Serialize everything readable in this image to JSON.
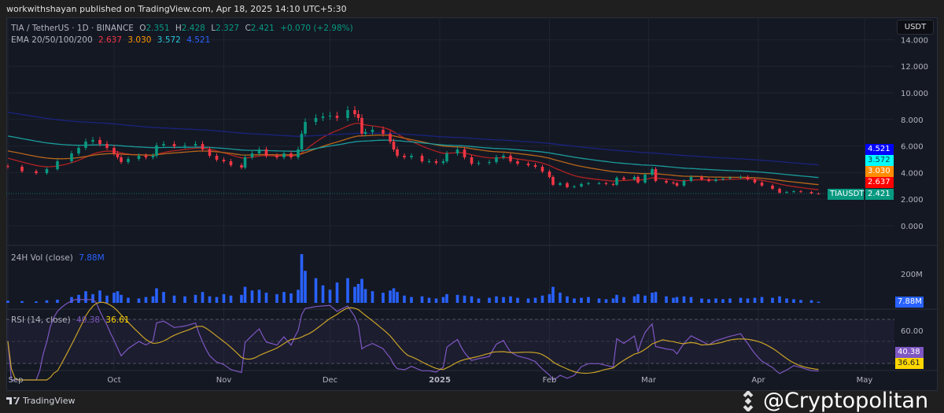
{
  "publisher_line": "workwithshayan published on TradingView.com, Apr 18, 2025 14:10 UTC+5:30",
  "header": {
    "symbol": "TIA / TetherUS · 1D · BINANCE",
    "open_label": "O",
    "open": "2.351",
    "high_label": "H",
    "high": "2.428",
    "low_label": "L",
    "low": "2.327",
    "close_label": "C",
    "close": "2.421",
    "change": "+0.070 (+2.98%)",
    "ema_label": "EMA 20/50/100/200",
    "ema20": "2.637",
    "ema50": "3.030",
    "ema100": "3.572",
    "ema200": "4.521"
  },
  "currency_button": "USDT",
  "volume_legend": {
    "label": "24H Vol (close)",
    "value": "7.88M"
  },
  "rsi_legend": {
    "label": "RSI (14, close)",
    "rsi": "40.38",
    "ma": "36.61"
  },
  "last_price_tag": {
    "symbol": "TIAUSDT",
    "value": "2.421"
  },
  "footer": {
    "brand": "TradingView",
    "watermark": "@Cryptopolitan"
  },
  "colors": {
    "up": "#089981",
    "down": "#f23645",
    "ema20": "#ff0000",
    "ema50": "#ff8c00",
    "ema100": "#00ffff",
    "ema200": "#0000ff",
    "volume": "#2962ff",
    "rsi": "#7e57c2",
    "rsi_ma": "#ffd600"
  },
  "chart_data": [
    {
      "type": "candlestick",
      "title": "TIA / TetherUS · 1D · BINANCE",
      "ylim": [
        0,
        14
      ],
      "y_ticks": [
        "0.000",
        "2.000",
        "4.000",
        "6.000",
        "8.000",
        "10.000",
        "12.000",
        "14.000"
      ],
      "x_ticks": [
        {
          "label": "Sep",
          "date": "2024-09-01"
        },
        {
          "label": "Oct",
          "date": "2024-10-01"
        },
        {
          "label": "Nov",
          "date": "2024-11-01"
        },
        {
          "label": "Dec",
          "date": "2024-12-01"
        },
        {
          "label": "2025",
          "date": "2025-01-01"
        },
        {
          "label": "Feb",
          "date": "2025-02-01"
        },
        {
          "label": "Mar",
          "date": "2025-03-01"
        },
        {
          "label": "Apr",
          "date": "2025-04-01"
        },
        {
          "label": "May",
          "date": "2025-05-01"
        }
      ],
      "series_fields": [
        "date",
        "close",
        "volume_millions"
      ],
      "candles": [
        [
          "2024-09-01",
          4.44,
          15
        ],
        [
          "2024-09-05",
          4.1,
          12
        ],
        [
          "2024-09-09",
          3.96,
          10
        ],
        [
          "2024-09-12",
          4.26,
          18
        ],
        [
          "2024-09-15",
          4.85,
          22
        ],
        [
          "2024-09-19",
          5.44,
          40
        ],
        [
          "2024-09-21",
          5.86,
          55
        ],
        [
          "2024-09-23",
          6.33,
          80
        ],
        [
          "2024-09-25",
          6.45,
          60
        ],
        [
          "2024-09-27",
          6.15,
          85
        ],
        [
          "2024-09-29",
          5.86,
          50
        ],
        [
          "2024-10-01",
          5.44,
          70
        ],
        [
          "2024-10-02",
          5.15,
          80
        ],
        [
          "2024-10-03",
          4.79,
          55
        ],
        [
          "2024-10-05",
          5.03,
          35
        ],
        [
          "2024-10-08",
          5.27,
          30
        ],
        [
          "2024-10-10",
          5.15,
          40
        ],
        [
          "2024-10-12",
          5.27,
          45
        ],
        [
          "2024-10-13",
          6.04,
          100
        ],
        [
          "2024-10-15",
          6.15,
          75
        ],
        [
          "2024-10-18",
          5.98,
          50
        ],
        [
          "2024-10-21",
          6.04,
          45
        ],
        [
          "2024-10-24",
          6.15,
          55
        ],
        [
          "2024-10-26",
          5.74,
          75
        ],
        [
          "2024-10-28",
          5.27,
          45
        ],
        [
          "2024-10-30",
          4.97,
          40
        ],
        [
          "2024-11-01",
          4.85,
          60
        ],
        [
          "2024-11-03",
          4.56,
          50
        ],
        [
          "2024-11-06",
          4.38,
          55
        ],
        [
          "2024-11-07",
          5.15,
          110
        ],
        [
          "2024-11-09",
          5.44,
          85
        ],
        [
          "2024-11-11",
          5.74,
          90
        ],
        [
          "2024-11-13",
          5.27,
          70
        ],
        [
          "2024-11-16",
          5.15,
          60
        ],
        [
          "2024-11-18",
          5.44,
          75
        ],
        [
          "2024-11-20",
          5.15,
          65
        ],
        [
          "2024-11-22",
          5.74,
          90
        ],
        [
          "2024-11-23",
          6.92,
          335
        ],
        [
          "2024-11-24",
          7.81,
          220
        ],
        [
          "2024-11-27",
          8.11,
          170
        ],
        [
          "2024-11-29",
          8.22,
          120
        ],
        [
          "2024-12-01",
          8.28,
          90
        ],
        [
          "2024-12-03",
          8.11,
          140
        ],
        [
          "2024-12-06",
          8.7,
          170
        ],
        [
          "2024-12-08",
          8.4,
          110
        ],
        [
          "2024-12-09",
          8.11,
          130
        ],
        [
          "2024-12-10",
          6.92,
          165
        ],
        [
          "2024-12-11",
          7.05,
          95
        ],
        [
          "2024-12-13",
          7.22,
          80
        ],
        [
          "2024-12-16",
          6.92,
          70
        ],
        [
          "2024-12-18",
          6.33,
          85
        ],
        [
          "2024-12-19",
          5.74,
          100
        ],
        [
          "2024-12-20",
          5.27,
          75
        ],
        [
          "2024-12-22",
          5.15,
          50
        ],
        [
          "2024-12-24",
          5.27,
          40
        ],
        [
          "2024-12-27",
          4.85,
          45
        ],
        [
          "2024-12-29",
          4.85,
          35
        ],
        [
          "2024-12-31",
          4.73,
          30
        ],
        [
          "2025-01-02",
          4.85,
          40
        ],
        [
          "2025-01-03",
          5.44,
          60
        ],
        [
          "2025-01-06",
          5.74,
          55
        ],
        [
          "2025-01-08",
          5.15,
          50
        ],
        [
          "2025-01-10",
          4.67,
          45
        ],
        [
          "2025-01-12",
          4.73,
          30
        ],
        [
          "2025-01-15",
          4.79,
          35
        ],
        [
          "2025-01-17",
          5.15,
          45
        ],
        [
          "2025-01-19",
          5.27,
          40
        ],
        [
          "2025-01-21",
          4.85,
          45
        ],
        [
          "2025-01-23",
          4.67,
          35
        ],
        [
          "2025-01-26",
          4.56,
          30
        ],
        [
          "2025-01-28",
          4.44,
          35
        ],
        [
          "2025-01-30",
          4.08,
          50
        ],
        [
          "2025-02-01",
          3.67,
          60
        ],
        [
          "2025-02-02",
          3.08,
          110
        ],
        [
          "2025-02-04",
          3.2,
          70
        ],
        [
          "2025-02-06",
          2.9,
          45
        ],
        [
          "2025-02-08",
          2.96,
          30
        ],
        [
          "2025-02-10",
          3.14,
          35
        ],
        [
          "2025-02-12",
          3.2,
          40
        ],
        [
          "2025-02-15",
          3.2,
          30
        ],
        [
          "2025-02-17",
          3.14,
          25
        ],
        [
          "2025-02-19",
          3.08,
          30
        ],
        [
          "2025-02-20",
          3.61,
          55
        ],
        [
          "2025-02-22",
          3.49,
          40
        ],
        [
          "2025-02-25",
          3.67,
          45
        ],
        [
          "2025-02-26",
          3.25,
          60
        ],
        [
          "2025-02-28",
          3.85,
          50
        ],
        [
          "2025-03-02",
          4.26,
          70
        ],
        [
          "2025-03-03",
          3.37,
          75
        ],
        [
          "2025-03-06",
          3.25,
          45
        ],
        [
          "2025-03-08",
          3.2,
          35
        ],
        [
          "2025-03-09",
          3.02,
          40
        ],
        [
          "2025-03-11",
          3.37,
          45
        ],
        [
          "2025-03-13",
          3.67,
          40
        ],
        [
          "2025-03-16",
          3.49,
          30
        ],
        [
          "2025-03-18",
          3.37,
          25
        ],
        [
          "2025-03-20",
          3.49,
          30
        ],
        [
          "2025-03-22",
          3.55,
          25
        ],
        [
          "2025-03-24",
          3.61,
          30
        ],
        [
          "2025-03-27",
          3.67,
          35
        ],
        [
          "2025-03-29",
          3.49,
          30
        ],
        [
          "2025-03-31",
          3.25,
          35
        ],
        [
          "2025-04-02",
          3.02,
          40
        ],
        [
          "2025-04-05",
          2.78,
          35
        ],
        [
          "2025-04-07",
          2.49,
          45
        ],
        [
          "2025-04-09",
          2.54,
          30
        ],
        [
          "2025-04-11",
          2.6,
          25
        ],
        [
          "2025-04-13",
          2.54,
          20
        ],
        [
          "2025-04-16",
          2.43,
          18
        ],
        [
          "2025-04-18",
          2.42,
          7.88
        ]
      ],
      "ema_start": {
        "ema20": 5.15,
        "ema50": 5.68,
        "ema100": 6.8,
        "ema200": 8.58
      }
    },
    {
      "type": "bar",
      "title": "24H Vol (close)",
      "y_ticks": [
        "200M"
      ],
      "ylim_millions": [
        0,
        340
      ]
    },
    {
      "type": "line",
      "title": "RSI (14, close)",
      "y_ticks": [
        "60.00"
      ],
      "bands": [
        30,
        50,
        70
      ],
      "last": {
        "rsi": 40.38,
        "ma": 36.61
      }
    }
  ]
}
